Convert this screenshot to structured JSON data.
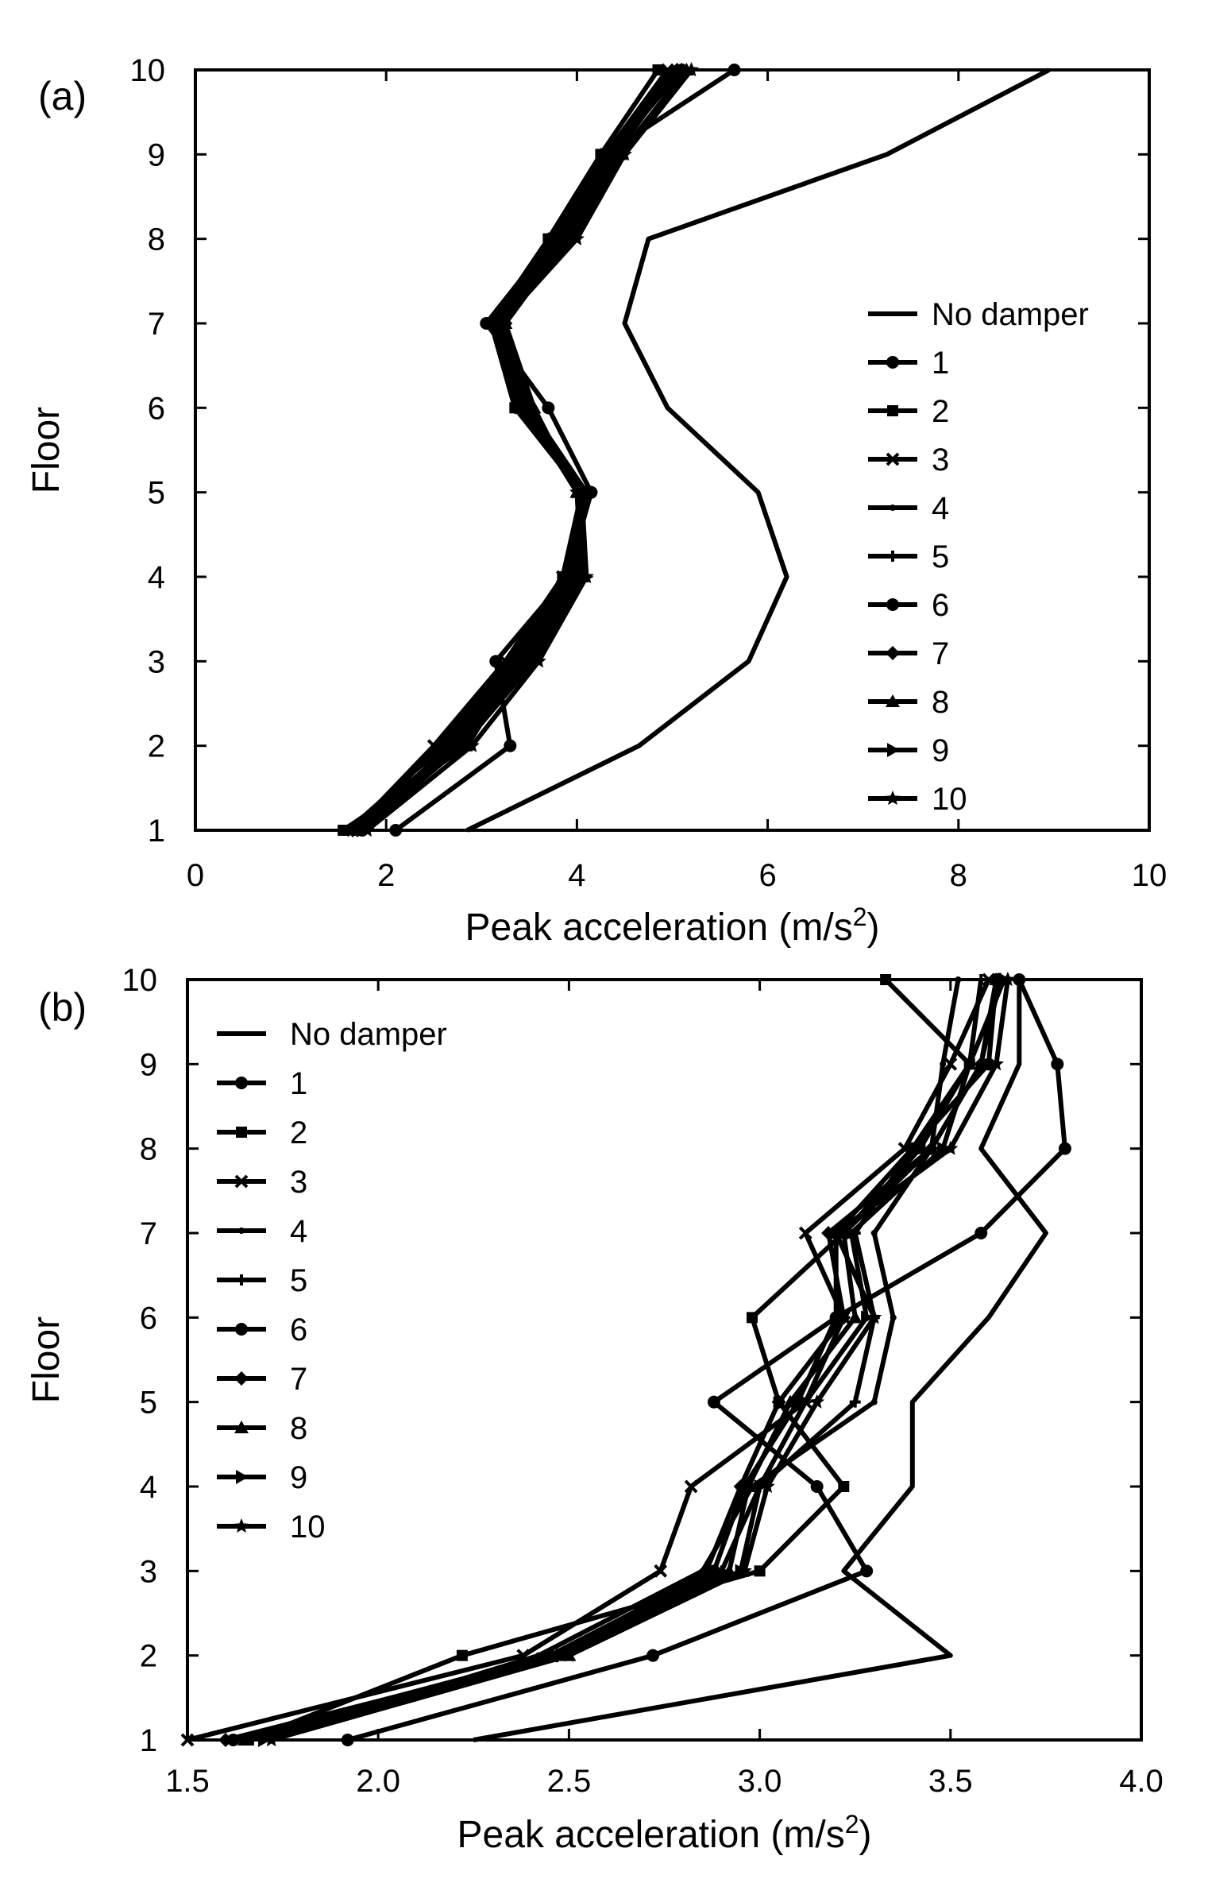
{
  "chart_data": [
    {
      "type": "line",
      "panel_label": "(a)",
      "xlabel": "Peak acceleration (m/s",
      "xlabel_sup": "2",
      "xlabel_close": ")",
      "ylabel": "Floor",
      "xlim": [
        0,
        10
      ],
      "ylim": [
        1,
        10
      ],
      "xticks": [
        "0",
        "2",
        "4",
        "6",
        "8",
        "10"
      ],
      "yticks": [
        "1",
        "2",
        "3",
        "4",
        "5",
        "6",
        "7",
        "8",
        "9",
        "10"
      ],
      "y": [
        1,
        2,
        3,
        4,
        5,
        6,
        7,
        8,
        9,
        10
      ],
      "legend_position": "right",
      "series": [
        {
          "name": "No damper",
          "marker": "none",
          "values": [
            2.85,
            4.65,
            5.8,
            6.2,
            5.9,
            4.95,
            4.5,
            4.75,
            7.25,
            8.95
          ]
        },
        {
          "name": "1",
          "marker": "circle",
          "values": [
            2.1,
            3.3,
            3.15,
            3.9,
            4.15,
            3.7,
            3.05,
            3.75,
            4.3,
            5.65
          ]
        },
        {
          "name": "2",
          "marker": "square",
          "values": [
            1.55,
            2.85,
            3.4,
            3.85,
            4.05,
            3.35,
            3.1,
            3.7,
            4.25,
            4.85
          ]
        },
        {
          "name": "3",
          "marker": "x",
          "values": [
            1.65,
            2.5,
            3.25,
            3.85,
            4.1,
            3.4,
            3.15,
            3.75,
            4.3,
            4.95
          ]
        },
        {
          "name": "4",
          "marker": "dot",
          "values": [
            1.7,
            2.55,
            3.3,
            3.9,
            4.1,
            3.45,
            3.15,
            3.8,
            4.35,
            5.0
          ]
        },
        {
          "name": "5",
          "marker": "plus",
          "values": [
            1.6,
            2.6,
            3.35,
            3.95,
            4.1,
            3.45,
            3.2,
            3.8,
            4.4,
            5.05
          ]
        },
        {
          "name": "6",
          "marker": "circle",
          "values": [
            1.75,
            2.65,
            3.4,
            4.0,
            4.1,
            3.5,
            3.2,
            3.85,
            4.35,
            5.1
          ]
        },
        {
          "name": "7",
          "marker": "diamond",
          "values": [
            1.65,
            2.7,
            3.45,
            4.0,
            4.05,
            3.5,
            3.25,
            3.9,
            4.4,
            5.05
          ]
        },
        {
          "name": "8",
          "marker": "triangle-up",
          "values": [
            1.7,
            2.75,
            3.5,
            4.05,
            4.0,
            3.55,
            3.25,
            3.9,
            4.45,
            5.15
          ]
        },
        {
          "name": "9",
          "marker": "triangle-right",
          "values": [
            1.75,
            2.8,
            3.55,
            4.1,
            4.05,
            3.5,
            3.2,
            3.95,
            4.45,
            5.15
          ]
        },
        {
          "name": "10",
          "marker": "star",
          "values": [
            1.8,
            2.9,
            3.6,
            4.1,
            4.0,
            3.45,
            3.2,
            4.0,
            4.5,
            5.2
          ]
        }
      ]
    },
    {
      "type": "line",
      "panel_label": "(b)",
      "xlabel": "Peak acceleration (m/s",
      "xlabel_sup": "2",
      "xlabel_close": ")",
      "ylabel": "Floor",
      "xlim": [
        1.5,
        4.0
      ],
      "ylim": [
        1,
        10
      ],
      "xticks": [
        "1.5",
        "2.0",
        "2.5",
        "3.0",
        "3.5",
        "4.0"
      ],
      "yticks": [
        "1",
        "2",
        "3",
        "4",
        "5",
        "6",
        "7",
        "8",
        "9",
        "10"
      ],
      "y": [
        1,
        2,
        3,
        4,
        5,
        6,
        7,
        8,
        9,
        10
      ],
      "legend_position": "top-left",
      "series": [
        {
          "name": "No damper",
          "marker": "none",
          "values": [
            2.25,
            3.5,
            3.22,
            3.4,
            3.4,
            3.6,
            3.75,
            3.58,
            3.68,
            3.68
          ]
        },
        {
          "name": "1",
          "marker": "circle",
          "values": [
            1.92,
            2.72,
            3.28,
            3.15,
            2.88,
            3.2,
            3.58,
            3.8,
            3.78,
            3.68
          ]
        },
        {
          "name": "2",
          "marker": "square",
          "values": [
            1.66,
            2.22,
            3.0,
            3.22,
            3.05,
            2.98,
            3.22,
            3.42,
            3.55,
            3.33
          ]
        },
        {
          "name": "3",
          "marker": "x",
          "values": [
            1.5,
            2.38,
            2.74,
            2.82,
            3.12,
            3.22,
            3.12,
            3.38,
            3.5,
            3.6
          ]
        },
        {
          "name": "4",
          "marker": "dot",
          "values": [
            1.7,
            2.42,
            2.85,
            2.98,
            3.3,
            3.35,
            3.3,
            3.45,
            3.48,
            3.52
          ]
        },
        {
          "name": "5",
          "marker": "plus",
          "values": [
            1.64,
            2.48,
            2.9,
            3.0,
            3.25,
            3.3,
            3.25,
            3.4,
            3.55,
            3.58
          ]
        },
        {
          "name": "6",
          "marker": "circle",
          "values": [
            1.62,
            2.45,
            2.88,
            2.96,
            3.1,
            3.2,
            3.2,
            3.4,
            3.6,
            3.62
          ]
        },
        {
          "name": "7",
          "marker": "diamond",
          "values": [
            1.6,
            2.47,
            2.86,
            2.95,
            3.05,
            3.22,
            3.18,
            3.45,
            3.58,
            3.63
          ]
        },
        {
          "name": "8",
          "marker": "triangle-up",
          "values": [
            1.65,
            2.5,
            2.92,
            2.97,
            3.08,
            3.25,
            3.22,
            3.45,
            3.58,
            3.62
          ]
        },
        {
          "name": "9",
          "marker": "triangle-right",
          "values": [
            1.7,
            2.48,
            2.95,
            3.0,
            3.12,
            3.28,
            3.24,
            3.48,
            3.55,
            3.64
          ]
        },
        {
          "name": "10",
          "marker": "star",
          "values": [
            1.72,
            2.5,
            2.96,
            3.02,
            3.15,
            3.3,
            3.2,
            3.5,
            3.62,
            3.65
          ]
        }
      ]
    }
  ]
}
